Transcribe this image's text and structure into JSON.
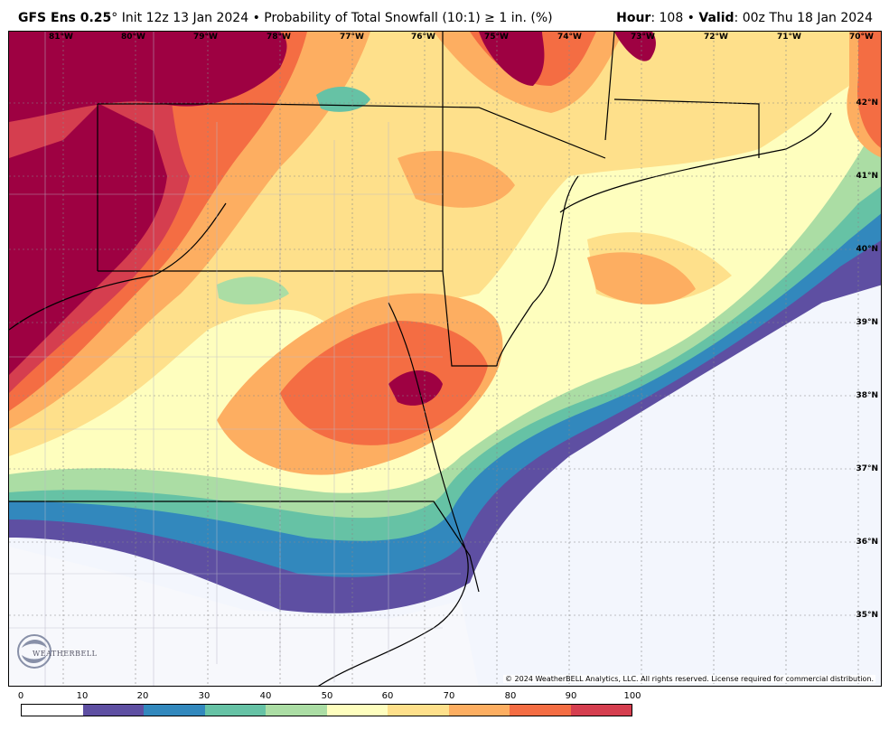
{
  "header": {
    "model": "GFS Ens 0.25",
    "degree": "°",
    "init": " Init 12z 13 Jan 2024",
    "bullet": " • ",
    "product": "Probability of Total Snowfall (10:1) ≥ 1 in. (%)",
    "hour_label": "Hour",
    "hour_value": ": 108",
    "valid_label": "Valid",
    "valid_value": ": 00z Thu 18 Jan 2024"
  },
  "map": {
    "lon_labels": [
      "81°W",
      "80°W",
      "79°W",
      "78°W",
      "77°W",
      "76°W",
      "75°W",
      "74°W",
      "73°W",
      "72°W",
      "71°W",
      "70°W"
    ],
    "lat_labels": [
      "42°N",
      "41°N",
      "40°N",
      "39°N",
      "38°N",
      "37°N",
      "36°N",
      "35°N"
    ],
    "logo_text": "WEATHERBELL",
    "copyright": "© 2024 WeatherBELL Analytics, LLC. All rights reserved. License required for commercial distribution."
  },
  "colorbar": {
    "ticks": [
      "0",
      "10",
      "20",
      "30",
      "40",
      "50",
      "60",
      "70",
      "80",
      "90",
      "100"
    ],
    "colors": [
      "#ffffff",
      "#5e4fa2",
      "#3288bd",
      "#66c2a5",
      "#abdda4",
      "#fefebe",
      "#fee08b",
      "#fdae61",
      "#f46d43",
      "#d53e4f",
      "#9e0142"
    ]
  }
}
